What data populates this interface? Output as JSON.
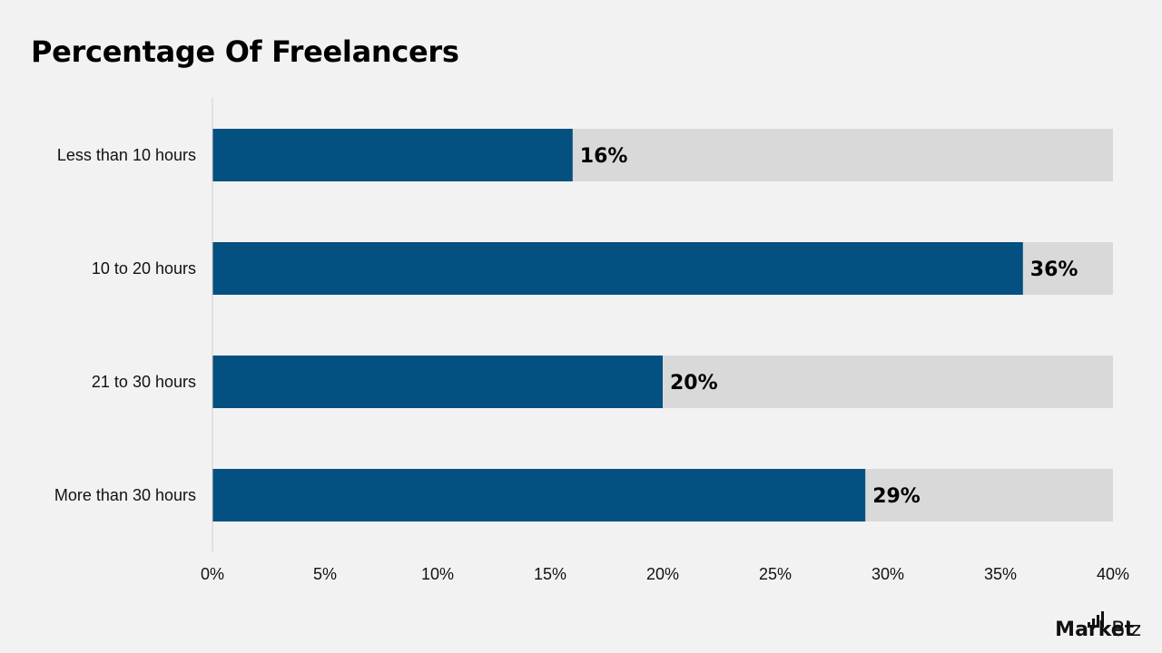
{
  "chart_data": {
    "type": "bar",
    "orientation": "horizontal",
    "title": "Percentage Of Freelancers",
    "categories": [
      "Less than 10 hours",
      "10 to 20 hours",
      "21 to 30 hours",
      "More than 30 hours"
    ],
    "values": [
      16,
      36,
      20,
      29
    ],
    "value_labels": [
      "16%",
      "36%",
      "20%",
      "29%"
    ],
    "xlim": [
      0,
      40
    ],
    "xticks": [
      0,
      5,
      10,
      15,
      20,
      25,
      30,
      35,
      40
    ],
    "xtick_labels": [
      "0%",
      "5%",
      "10%",
      "15%",
      "20%",
      "25%",
      "30%",
      "35%",
      "40%"
    ],
    "grid": false,
    "colors": {
      "bar": "#045080",
      "track": "#d9d9d9",
      "background": "#f2f2f2",
      "axis": "#d0d0d0"
    }
  },
  "brand": {
    "part1": "Market",
    "part2": ".Biz"
  }
}
